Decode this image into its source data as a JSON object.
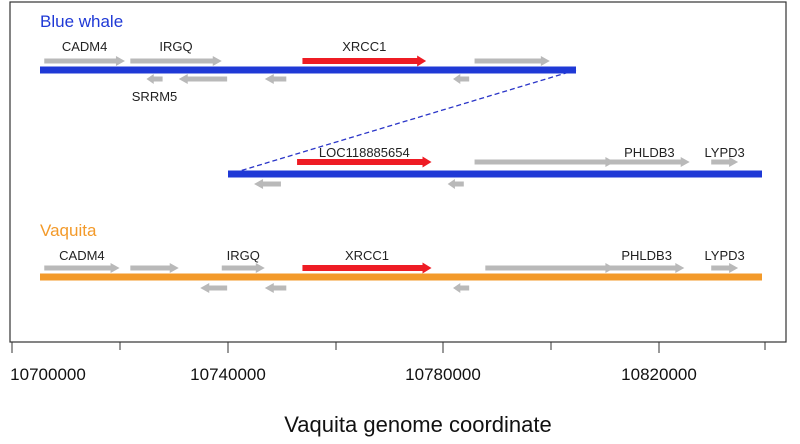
{
  "colors": {
    "blue_whale": "#1f39d6",
    "vaquita": "#f39a2a",
    "gene": "#b9b9b9",
    "focal_gene": "#ee1c24",
    "frame": "#333333",
    "connector": "#2a35c8"
  },
  "x_axis": {
    "title": "Vaquita genome coordinate",
    "ticks": [
      {
        "value": 10700000,
        "label": "10700000"
      },
      {
        "value": 10740000,
        "label": "10740000"
      },
      {
        "value": 10780000,
        "label": "10780000"
      },
      {
        "value": 10820000,
        "label": "10820000"
      }
    ]
  },
  "tracks": {
    "blue_whale_upper": {
      "title": "Blue whale",
      "genes": [
        {
          "label": "CADM4",
          "start": 10706000,
          "end": 10721000,
          "strand": "+"
        },
        {
          "label": "IRGQ",
          "start": 10722000,
          "end": 10739000,
          "strand": "+"
        },
        {
          "label": "SRRM5",
          "start": 10725000,
          "end": 10728000,
          "strand": "-"
        },
        {
          "label": "",
          "start": 10731000,
          "end": 10740000,
          "strand": "-"
        },
        {
          "label": "",
          "start": 10747000,
          "end": 10751000,
          "strand": "-"
        },
        {
          "label": "XRCC1",
          "start": 10754000,
          "end": 10777000,
          "strand": "+",
          "focal": true
        },
        {
          "label": "",
          "start": 10782000,
          "end": 10785000,
          "strand": "-"
        },
        {
          "label": "",
          "start": 10786000,
          "end": 10800000,
          "strand": "+"
        }
      ]
    },
    "blue_whale_lower": {
      "genes": [
        {
          "label": "LOC118885654",
          "start": 10753000,
          "end": 10778000,
          "strand": "+",
          "focal": true
        },
        {
          "label": "",
          "start": 10745000,
          "end": 10750000,
          "strand": "-"
        },
        {
          "label": "",
          "start": 10781000,
          "end": 10784000,
          "strand": "-"
        },
        {
          "label": "",
          "start": 10786000,
          "end": 10812000,
          "strand": "+"
        },
        {
          "label": "PHLDB3",
          "start": 10811000,
          "end": 10826000,
          "strand": "+"
        },
        {
          "label": "LYPD3",
          "start": 10830000,
          "end": 10835000,
          "strand": "+"
        }
      ]
    },
    "vaquita": {
      "title": "Vaquita",
      "genes": [
        {
          "label": "CADM4",
          "start": 10706000,
          "end": 10720000,
          "strand": "+"
        },
        {
          "label": "",
          "start": 10722000,
          "end": 10731000,
          "strand": "+"
        },
        {
          "label": "IRGQ",
          "start": 10739000,
          "end": 10747000,
          "strand": "+"
        },
        {
          "label": "",
          "start": 10735000,
          "end": 10740000,
          "strand": "-"
        },
        {
          "label": "",
          "start": 10747000,
          "end": 10751000,
          "strand": "-"
        },
        {
          "label": "XRCC1",
          "start": 10754000,
          "end": 10778000,
          "strand": "+",
          "focal": true
        },
        {
          "label": "",
          "start": 10782000,
          "end": 10785000,
          "strand": "-"
        },
        {
          "label": "",
          "start": 10788000,
          "end": 10812000,
          "strand": "+"
        },
        {
          "label": "PHLDB3",
          "start": 10811000,
          "end": 10825000,
          "strand": "+"
        },
        {
          "label": "LYPD3",
          "start": 10830000,
          "end": 10835000,
          "strand": "+"
        }
      ]
    }
  }
}
